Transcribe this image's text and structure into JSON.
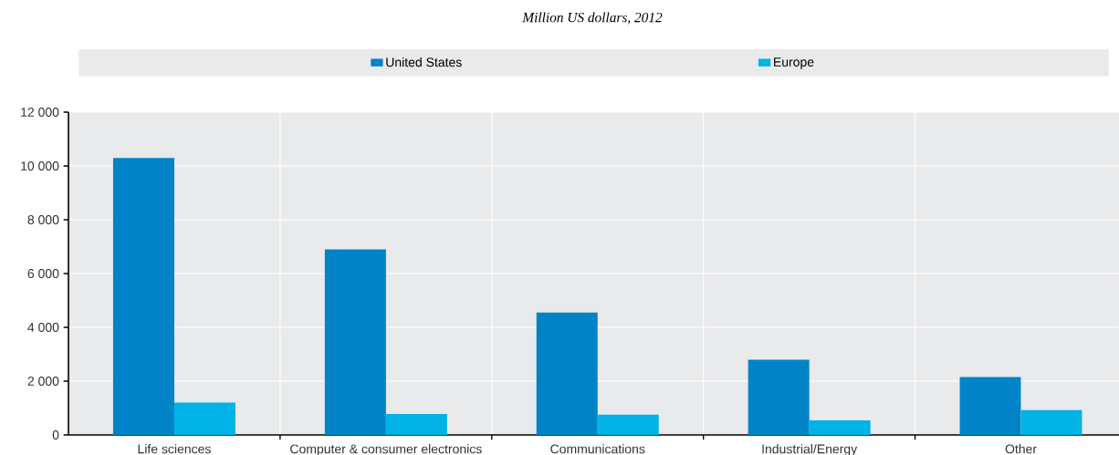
{
  "chart_data": {
    "type": "bar",
    "subtitle": "Million US dollars, 2012",
    "categories": [
      "Life sciences",
      "Computer & consumer electronics",
      "Communications",
      "Industrial/Energy",
      "Other"
    ],
    "series": [
      {
        "name": "United States",
        "color": "#0083c7",
        "values": [
          10300,
          6900,
          4550,
          2800,
          2150
        ]
      },
      {
        "name": "Europe",
        "color": "#00b2e5",
        "values": [
          1200,
          780,
          750,
          540,
          920
        ]
      }
    ],
    "ylim": [
      0,
      12000
    ],
    "yticks": [
      {
        "value": 0,
        "label": "0"
      },
      {
        "value": 2000,
        "label": "2 000"
      },
      {
        "value": 4000,
        "label": "4 000"
      },
      {
        "value": 6000,
        "label": "6 000"
      },
      {
        "value": 8000,
        "label": "8 000"
      },
      {
        "value": 10000,
        "label": "10 000"
      },
      {
        "value": 12000,
        "label": "12 000"
      }
    ],
    "grid": true,
    "legend": "top"
  }
}
